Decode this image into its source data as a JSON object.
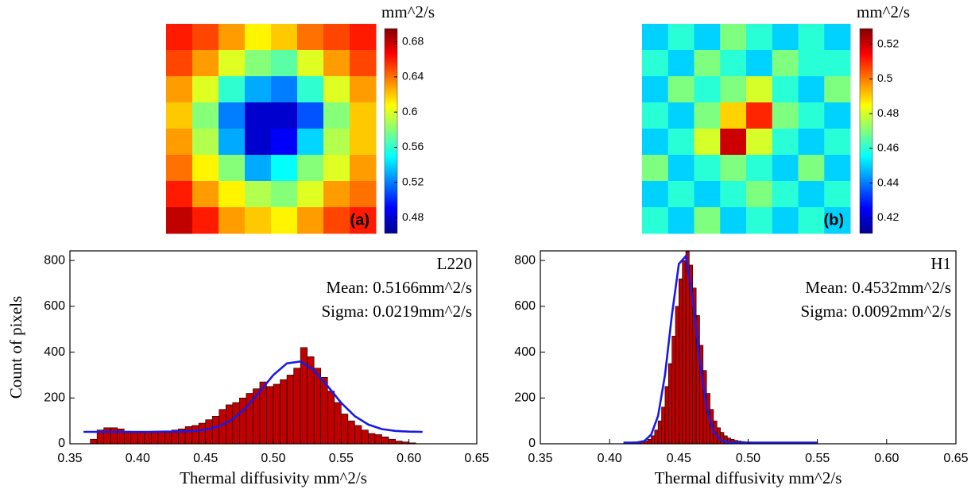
{
  "chart_data": [
    {
      "type": "heatmap",
      "colormap": "jet",
      "colorbar_label": "mm^2/s",
      "panel_label": "(a)",
      "clim": [
        0.462,
        0.695
      ],
      "cticks": [
        0.48,
        0.52,
        0.56,
        0.6,
        0.64,
        0.68
      ],
      "z": [
        [
          0.66,
          0.65,
          0.63,
          0.61,
          0.62,
          0.64,
          0.65,
          0.66
        ],
        [
          0.65,
          0.63,
          0.6,
          0.58,
          0.57,
          0.6,
          0.63,
          0.65
        ],
        [
          0.63,
          0.6,
          0.56,
          0.53,
          0.52,
          0.56,
          0.6,
          0.63
        ],
        [
          0.62,
          0.58,
          0.52,
          0.48,
          0.48,
          0.51,
          0.58,
          0.62
        ],
        [
          0.63,
          0.59,
          0.53,
          0.48,
          0.49,
          0.54,
          0.59,
          0.62
        ],
        [
          0.64,
          0.61,
          0.58,
          0.53,
          0.55,
          0.58,
          0.6,
          0.63
        ],
        [
          0.66,
          0.63,
          0.61,
          0.59,
          0.58,
          0.6,
          0.63,
          0.64
        ],
        [
          0.68,
          0.66,
          0.63,
          0.62,
          0.61,
          0.63,
          0.65,
          0.66
        ]
      ]
    },
    {
      "type": "heatmap",
      "colormap": "jet",
      "colorbar_label": "mm^2/s",
      "panel_label": "(b)",
      "clim": [
        0.411,
        0.529
      ],
      "cticks": [
        0.42,
        0.44,
        0.46,
        0.48,
        0.5,
        0.52
      ],
      "z": [
        [
          0.45,
          0.46,
          0.45,
          0.47,
          0.46,
          0.45,
          0.46,
          0.45
        ],
        [
          0.46,
          0.45,
          0.47,
          0.46,
          0.45,
          0.47,
          0.46,
          0.46
        ],
        [
          0.45,
          0.47,
          0.46,
          0.47,
          0.48,
          0.46,
          0.45,
          0.47
        ],
        [
          0.46,
          0.45,
          0.47,
          0.49,
          0.51,
          0.47,
          0.46,
          0.45
        ],
        [
          0.45,
          0.46,
          0.48,
          0.52,
          0.48,
          0.46,
          0.45,
          0.46
        ],
        [
          0.47,
          0.45,
          0.46,
          0.47,
          0.46,
          0.45,
          0.47,
          0.45
        ],
        [
          0.45,
          0.46,
          0.45,
          0.46,
          0.47,
          0.46,
          0.45,
          0.46
        ],
        [
          0.46,
          0.45,
          0.47,
          0.45,
          0.46,
          0.45,
          0.46,
          0.45
        ]
      ]
    },
    {
      "type": "histogram",
      "x_label": "Thermal diffusivity mm^2/s",
      "y_label": "Count of pixels",
      "annotations": [
        "L220",
        "Mean: 0.5166mm^2/s",
        "Sigma: 0.0219mm^2/s"
      ],
      "color": "#c00000",
      "bins": [
        0.365,
        0.37,
        0.375,
        0.38,
        0.385,
        0.39,
        0.395,
        0.4,
        0.405,
        0.41,
        0.415,
        0.42,
        0.425,
        0.43,
        0.435,
        0.44,
        0.445,
        0.45,
        0.455,
        0.46,
        0.465,
        0.47,
        0.475,
        0.48,
        0.485,
        0.49,
        0.495,
        0.5,
        0.505,
        0.51,
        0.515,
        0.52,
        0.525,
        0.53,
        0.535,
        0.54,
        0.545,
        0.55,
        0.555,
        0.56,
        0.565,
        0.57,
        0.575,
        0.58,
        0.585,
        0.59,
        0.595,
        0.6,
        0.605
      ],
      "values": [
        20,
        60,
        70,
        70,
        65,
        55,
        50,
        50,
        50,
        55,
        55,
        55,
        60,
        65,
        75,
        80,
        90,
        105,
        120,
        150,
        170,
        180,
        200,
        220,
        240,
        270,
        250,
        260,
        280,
        300,
        330,
        420,
        380,
        330,
        290,
        230,
        180,
        130,
        100,
        80,
        60,
        45,
        40,
        30,
        20,
        12,
        8,
        4
      ],
      "fit": {
        "color": "#1a1ae6",
        "x": [
          0.36,
          0.37,
          0.38,
          0.39,
          0.4,
          0.41,
          0.42,
          0.43,
          0.44,
          0.45,
          0.46,
          0.47,
          0.48,
          0.49,
          0.5,
          0.51,
          0.52,
          0.53,
          0.54,
          0.55,
          0.56,
          0.57,
          0.58,
          0.59,
          0.6,
          0.61
        ],
        "y": [
          52,
          52,
          52,
          52,
          52,
          52,
          53,
          53,
          55,
          61,
          76,
          107,
          158,
          228,
          300,
          351,
          359,
          320,
          252,
          179,
          121,
          84,
          64,
          56,
          53,
          52
        ]
      },
      "xlim": [
        0.35,
        0.65
      ],
      "ylim": [
        0,
        842
      ],
      "xticks": [
        0.35,
        {
          "value": 0.4,
          "label": "0.40"
        },
        0.45,
        {
          "value": 0.5,
          "label": "0.50"
        },
        0.55,
        {
          "value": 0.6,
          "label": "0.60"
        },
        0.65
      ],
      "yticks": [
        0,
        200,
        400,
        600,
        800
      ]
    },
    {
      "type": "histogram",
      "x_label": "Thermal diffusivity mm^2/s",
      "annotations": [
        "H1",
        "Mean: 0.4532mm^2/s",
        "Sigma: 0.0092mm^2/s"
      ],
      "color": "#c00000",
      "bins": [
        0.41,
        0.4125,
        0.415,
        0.4175,
        0.42,
        0.4225,
        0.425,
        0.4275,
        0.43,
        0.4325,
        0.435,
        0.4375,
        0.44,
        0.4425,
        0.445,
        0.4475,
        0.45,
        0.4525,
        0.455,
        0.4575,
        0.46,
        0.4625,
        0.465,
        0.4675,
        0.47,
        0.4725,
        0.475,
        0.4775,
        0.48,
        0.4825,
        0.485,
        0.4875,
        0.49,
        0.4925,
        0.495,
        0.4975,
        0.5,
        0.5025,
        0.505,
        0.5075,
        0.51,
        0.5125,
        0.515,
        0.5175,
        0.52,
        0.5225,
        0.525,
        0.5275,
        0.53,
        0.5325,
        0.535,
        0.5375,
        0.54,
        0.5425,
        0.545,
        0.5475,
        0.55
      ],
      "values": [
        2,
        2,
        3,
        3,
        5,
        8,
        12,
        20,
        35,
        60,
        100,
        160,
        250,
        350,
        470,
        600,
        720,
        800,
        840,
        780,
        680,
        560,
        430,
        320,
        220,
        150,
        100,
        70,
        50,
        35,
        25,
        20,
        15,
        12,
        10,
        8,
        8,
        6,
        6,
        5,
        4,
        4,
        3,
        3,
        2,
        2,
        2,
        1,
        1,
        1,
        1,
        1,
        1,
        1,
        1,
        1
      ],
      "fit": {
        "color": "#1a1ae6",
        "x": [
          0.41,
          0.415,
          0.42,
          0.425,
          0.43,
          0.435,
          0.44,
          0.445,
          0.45,
          0.455,
          0.46,
          0.465,
          0.47,
          0.475,
          0.48,
          0.485,
          0.49,
          0.495,
          0.5,
          0.505,
          0.51,
          0.515,
          0.52,
          0.525,
          0.53,
          0.535,
          0.54,
          0.545,
          0.55
        ],
        "y": [
          5,
          5,
          6,
          12,
          40,
          122,
          301,
          563,
          785,
          819,
          636,
          370,
          161,
          55,
          17,
          7,
          5,
          5,
          5,
          5,
          5,
          5,
          5,
          5,
          5,
          5,
          5,
          5,
          5
        ]
      },
      "xlim": [
        0.35,
        0.65
      ],
      "ylim": [
        0,
        842
      ],
      "xticks": [
        0.35,
        {
          "value": 0.4,
          "label": "0.40"
        },
        0.45,
        {
          "value": 0.5,
          "label": "0.50"
        },
        0.55,
        {
          "value": 0.6,
          "label": "0.60"
        },
        0.65
      ],
      "yticks": [
        0,
        200,
        400,
        600,
        800
      ]
    }
  ]
}
